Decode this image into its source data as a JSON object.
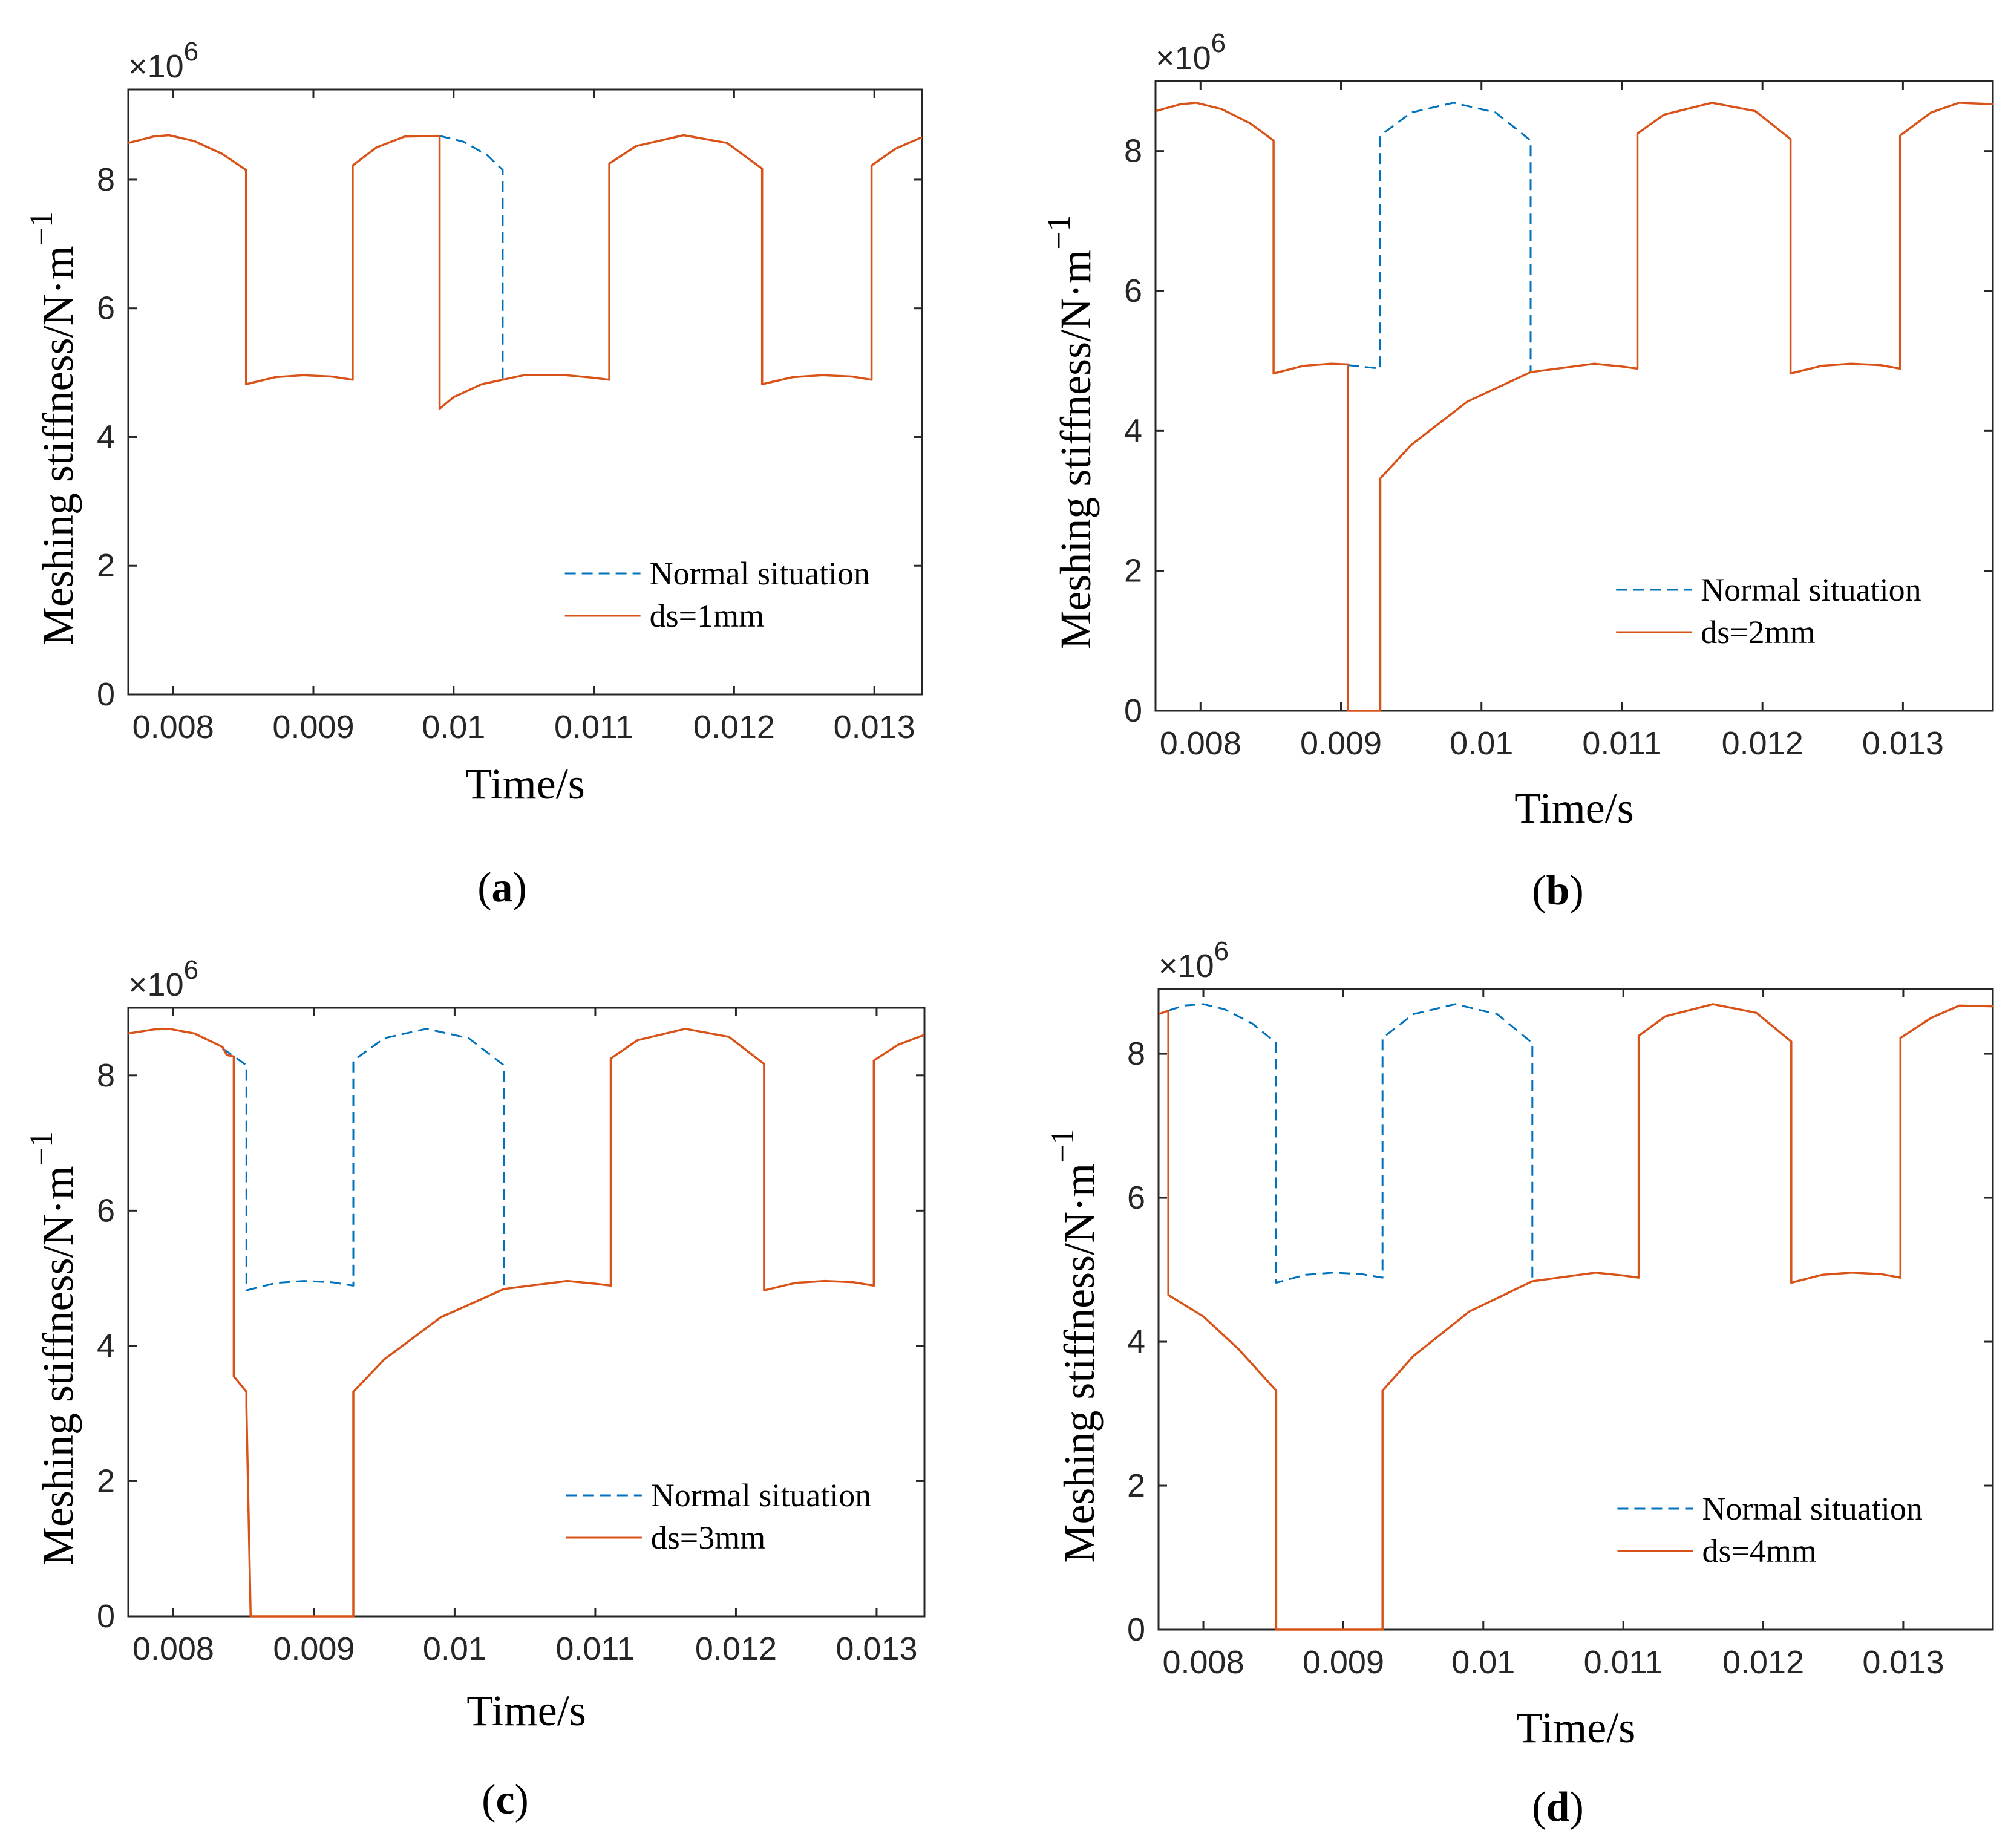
{
  "colors": {
    "normal": "#0072BD",
    "faulty": "#D95319",
    "axis": "#262626",
    "background": "#ffffff"
  },
  "chart_data": [
    {
      "type": "line",
      "panel": "a",
      "panel_label": "a",
      "xlabel": "Time/s",
      "ylabel": "Meshing stiffness/N·m",
      "ylabel_exponent": "−1",
      "y_multiplier": "×10",
      "y_multiplier_exponent": "6",
      "xlim": [
        0.00768,
        0.01334
      ],
      "ylim": [
        0,
        9.4
      ],
      "xticks": [
        0.008,
        0.009,
        0.01,
        0.011,
        0.012,
        0.013
      ],
      "xtick_labels": [
        "0.008",
        "0.009",
        "0.01",
        "0.011",
        "0.012",
        "0.013"
      ],
      "yticks": [
        0,
        2,
        4,
        6,
        8
      ],
      "ytick_labels": [
        "0",
        "2",
        "4",
        "6",
        "8"
      ],
      "legend_location": "lower-right",
      "series": [
        {
          "name": "Normal situation",
          "style": "dashed",
          "x": [
            0.0099,
            0.01007,
            0.01024,
            0.01035,
            0.01035
          ],
          "y": [
            8.68,
            8.59,
            8.38,
            8.15,
            4.85
          ]
        },
        {
          "name": "ds=1mm",
          "style": "solid",
          "x": [
            0.00768,
            0.00786,
            0.00797,
            0.00815,
            0.00835,
            0.00852,
            0.00852,
            0.00873,
            0.00893,
            0.00913,
            0.00928,
            0.00928,
            0.00945,
            0.00965,
            0.0099,
            0.0099,
            0.01,
            0.0102,
            0.0105,
            0.0108,
            0.011,
            0.01111,
            0.01111,
            0.0113,
            0.01164,
            0.01195,
            0.0122,
            0.0122,
            0.01242,
            0.01263,
            0.01284,
            0.01298,
            0.01298,
            0.01315,
            0.01334
          ],
          "y": [
            8.57,
            8.67,
            8.69,
            8.6,
            8.4,
            8.15,
            4.82,
            4.93,
            4.96,
            4.94,
            4.89,
            8.22,
            8.5,
            8.67,
            8.68,
            4.44,
            4.62,
            4.82,
            4.96,
            4.96,
            4.92,
            4.89,
            8.25,
            8.52,
            8.69,
            8.57,
            8.17,
            4.82,
            4.93,
            4.96,
            4.94,
            4.89,
            8.22,
            8.48,
            8.66
          ]
        }
      ]
    },
    {
      "type": "line",
      "panel": "b",
      "panel_label": "b",
      "xlabel": "Time/s",
      "ylabel": "Meshing stiffness/N·m",
      "ylabel_exponent": "−1",
      "y_multiplier": "×10",
      "y_multiplier_exponent": "6",
      "xlim": [
        0.00768,
        0.01364
      ],
      "ylim": [
        0,
        9.0
      ],
      "xticks": [
        0.008,
        0.009,
        0.01,
        0.011,
        0.012,
        0.013
      ],
      "xtick_labels": [
        "0.008",
        "0.009",
        "0.01",
        "0.011",
        "0.012",
        "0.013"
      ],
      "yticks": [
        0,
        2,
        4,
        6,
        8
      ],
      "ytick_labels": [
        "0",
        "2",
        "4",
        "6",
        "8"
      ],
      "legend_location": "lower-right",
      "series": [
        {
          "name": "Normal situation",
          "style": "dashed",
          "x": [
            0.00905,
            0.00928,
            0.00928,
            0.0095,
            0.0098,
            0.0101,
            0.01035,
            0.01035
          ],
          "y": [
            4.94,
            4.89,
            8.22,
            8.55,
            8.69,
            8.55,
            8.15,
            4.85
          ]
        },
        {
          "name": "ds=2mm",
          "style": "solid",
          "x": [
            0.00768,
            0.00786,
            0.00797,
            0.00815,
            0.00835,
            0.00852,
            0.00852,
            0.00873,
            0.00893,
            0.00905,
            0.00905,
            0.00928,
            0.00928,
            0.0095,
            0.0099,
            0.01035,
            0.0108,
            0.011,
            0.01111,
            0.01111,
            0.0113,
            0.01164,
            0.01195,
            0.0122,
            0.0122,
            0.01242,
            0.01263,
            0.01284,
            0.01298,
            0.01298,
            0.0132,
            0.0134,
            0.01364
          ],
          "y": [
            8.57,
            8.67,
            8.69,
            8.6,
            8.4,
            8.15,
            4.82,
            4.93,
            4.96,
            4.95,
            0,
            0,
            3.32,
            3.8,
            4.42,
            4.84,
            4.96,
            4.92,
            4.89,
            8.25,
            8.52,
            8.69,
            8.57,
            8.17,
            4.82,
            4.93,
            4.96,
            4.94,
            4.89,
            8.22,
            8.55,
            8.69,
            8.67
          ]
        }
      ]
    },
    {
      "type": "line",
      "panel": "c",
      "panel_label": "c",
      "xlabel": "Time/s",
      "ylabel": "Meshing stiffness/N·m",
      "ylabel_exponent": "−1",
      "y_multiplier": "×10",
      "y_multiplier_exponent": "6",
      "xlim": [
        0.00768,
        0.01334
      ],
      "ylim": [
        0,
        9.0
      ],
      "xticks": [
        0.008,
        0.009,
        0.01,
        0.011,
        0.012,
        0.013
      ],
      "xtick_labels": [
        "0.008",
        "0.009",
        "0.01",
        "0.011",
        "0.012",
        "0.013"
      ],
      "yticks": [
        0,
        2,
        4,
        6,
        8
      ],
      "ytick_labels": [
        "0",
        "2",
        "4",
        "6",
        "8"
      ],
      "legend_location": "lower-right",
      "series": [
        {
          "name": "Normal situation",
          "style": "dashed",
          "x": [
            0.00835,
            0.00852,
            0.00852,
            0.00873,
            0.00893,
            0.00913,
            0.00928,
            0.00928,
            0.0095,
            0.0098,
            0.0101,
            0.01035,
            0.01035
          ],
          "y": [
            8.4,
            8.15,
            4.82,
            4.93,
            4.96,
            4.94,
            4.89,
            8.22,
            8.55,
            8.69,
            8.55,
            8.15,
            4.85
          ]
        },
        {
          "name": "ds=3mm",
          "style": "solid",
          "x": [
            0.00768,
            0.00786,
            0.00797,
            0.00815,
            0.00835,
            0.00838,
            0.00843,
            0.00843,
            0.00852,
            0.00852,
            0.00855,
            0.00928,
            0.00928,
            0.0095,
            0.0099,
            0.01035,
            0.0108,
            0.011,
            0.01111,
            0.01111,
            0.0113,
            0.01164,
            0.01195,
            0.0122,
            0.0122,
            0.01242,
            0.01263,
            0.01284,
            0.01298,
            0.01298,
            0.01315,
            0.01334
          ],
          "y": [
            8.62,
            8.68,
            8.69,
            8.62,
            8.42,
            8.3,
            8.28,
            3.55,
            3.32,
            3.1,
            0,
            0,
            3.32,
            3.8,
            4.42,
            4.84,
            4.96,
            4.92,
            4.89,
            8.25,
            8.52,
            8.69,
            8.57,
            8.17,
            4.82,
            4.93,
            4.96,
            4.94,
            4.89,
            8.22,
            8.45,
            8.6
          ]
        }
      ]
    },
    {
      "type": "line",
      "panel": "d",
      "panel_label": "d",
      "xlabel": "Time/s",
      "ylabel": "Meshing stiffness/N·m",
      "ylabel_exponent": "−1",
      "y_multiplier": "×10",
      "y_multiplier_exponent": "6",
      "xlim": [
        0.00768,
        0.01364
      ],
      "ylim": [
        0,
        8.9
      ],
      "xticks": [
        0.008,
        0.009,
        0.01,
        0.011,
        0.012,
        0.013
      ],
      "xtick_labels": [
        "0.008",
        "0.009",
        "0.01",
        "0.011",
        "0.012",
        "0.013"
      ],
      "yticks": [
        0,
        2,
        4,
        6,
        8
      ],
      "ytick_labels": [
        "0",
        "2",
        "4",
        "6",
        "8"
      ],
      "legend_location": "lower-right",
      "series": [
        {
          "name": "Normal situation",
          "style": "dashed",
          "x": [
            0.00775,
            0.00786,
            0.008,
            0.00815,
            0.00835,
            0.00852,
            0.00852,
            0.00873,
            0.00893,
            0.00913,
            0.00928,
            0.00928,
            0.0095,
            0.0098,
            0.0101,
            0.01035,
            0.01035
          ],
          "y": [
            8.6,
            8.67,
            8.69,
            8.62,
            8.42,
            8.15,
            4.82,
            4.93,
            4.96,
            4.94,
            4.89,
            8.22,
            8.55,
            8.69,
            8.55,
            8.15,
            4.85
          ]
        },
        {
          "name": "ds=4mm",
          "style": "solid",
          "x": [
            0.00768,
            0.00775,
            0.00775,
            0.008,
            0.00825,
            0.00852,
            0.00852,
            0.00928,
            0.00928,
            0.0095,
            0.0099,
            0.01035,
            0.0108,
            0.011,
            0.01111,
            0.01111,
            0.0113,
            0.01164,
            0.01195,
            0.0122,
            0.0122,
            0.01242,
            0.01263,
            0.01284,
            0.01298,
            0.01298,
            0.0132,
            0.0134,
            0.01364
          ],
          "y": [
            8.55,
            8.6,
            4.65,
            4.35,
            3.9,
            3.32,
            0,
            0,
            3.32,
            3.8,
            4.42,
            4.84,
            4.96,
            4.92,
            4.89,
            8.25,
            8.52,
            8.69,
            8.57,
            8.17,
            4.82,
            4.93,
            4.96,
            4.94,
            4.89,
            8.22,
            8.5,
            8.67,
            8.66
          ]
        }
      ]
    }
  ]
}
